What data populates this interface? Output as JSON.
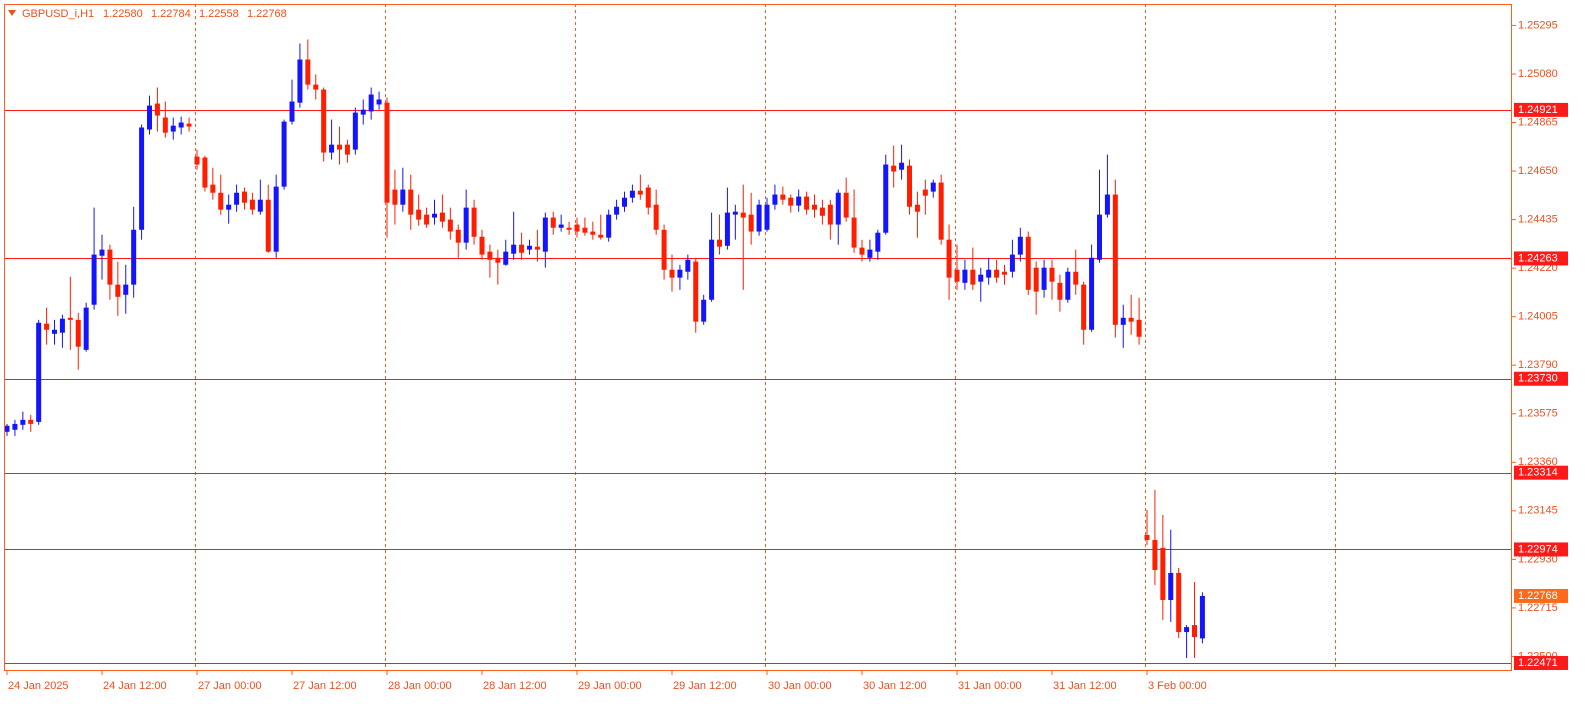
{
  "chart_data": {
    "type": "candlestick",
    "title": "GBPUSD_i,H1",
    "title_values": [
      "1.22580",
      "1.22784",
      "1.22558",
      "1.22768"
    ],
    "categories": [
      "24 Jan 2025",
      null,
      null,
      null,
      null,
      null,
      null,
      null,
      null,
      null,
      null,
      null,
      "24 Jan 12:00",
      null,
      null,
      null,
      null,
      null,
      null,
      null,
      null,
      null,
      null,
      null,
      "27 Jan 00:00",
      null,
      null,
      null,
      null,
      null,
      null,
      null,
      null,
      null,
      null,
      null,
      "27 Jan 12:00",
      null,
      null,
      null,
      null,
      null,
      null,
      null,
      null,
      null,
      null,
      null,
      "28 Jan 00:00",
      null,
      null,
      null,
      null,
      null,
      null,
      null,
      null,
      null,
      null,
      null,
      "28 Jan 12:00",
      null,
      null,
      null,
      null,
      null,
      null,
      null,
      null,
      null,
      null,
      null,
      "29 Jan 00:00",
      null,
      null,
      null,
      null,
      null,
      null,
      null,
      null,
      null,
      null,
      null,
      "29 Jan 12:00",
      null,
      null,
      null,
      null,
      null,
      null,
      null,
      null,
      null,
      null,
      null,
      "30 Jan 00:00",
      null,
      null,
      null,
      null,
      null,
      null,
      null,
      null,
      null,
      null,
      null,
      "30 Jan 12:00",
      null,
      null,
      null,
      null,
      null,
      null,
      null,
      null,
      null,
      null,
      null,
      "31 Jan 00:00",
      null,
      null,
      null,
      null,
      null,
      null,
      null,
      null,
      null,
      null,
      null,
      "31 Jan 12:00",
      null,
      null,
      null,
      null,
      null,
      null,
      null,
      null,
      null,
      null,
      null,
      "3 Feb 00:00",
      null,
      null,
      null,
      null,
      null,
      null,
      null
    ],
    "open": [
      1.23495,
      1.23504,
      1.23526,
      1.23548,
      1.23539,
      1.23974,
      1.23929,
      1.23934,
      1.24,
      1.23991,
      1.23858,
      1.24058,
      1.24275,
      1.24302,
      1.24147,
      1.24102,
      1.24147,
      1.2439,
      1.24834,
      1.24949,
      1.24887,
      1.24825,
      1.24843,
      1.2486,
      1.24714,
      1.2471,
      1.2459,
      1.24554,
      1.24479,
      1.24501,
      1.24559,
      1.24523,
      1.2447,
      1.24523,
      1.24293,
      1.24581,
      1.24869,
      1.24953,
      1.25144,
      1.25033,
      1.25011,
      1.24732,
      1.24767,
      1.24767,
      1.24745,
      1.249,
      1.24914,
      1.24945,
      1.24953,
      1.24568,
      1.24501,
      1.24568,
      1.24479,
      1.24457,
      1.24444,
      1.24466,
      1.24435,
      1.2439,
      1.24333,
      1.24488,
      1.24359,
      1.24293,
      1.24266,
      1.24235,
      1.24284,
      1.24324,
      1.24302,
      1.24315,
      1.24293,
      1.24444,
      1.24399,
      1.24399,
      1.24413,
      1.24399,
      1.24382,
      1.24368,
      1.24355,
      1.24457,
      1.24492,
      1.24532,
      1.24563,
      1.24577,
      1.24501,
      1.2439,
      1.24213,
      1.24178,
      1.24204,
      1.24249,
      1.23983,
      1.2408,
      1.24346,
      1.24319,
      1.24457,
      1.24466,
      1.24457,
      1.24382,
      1.2439,
      1.24501,
      1.24546,
      1.24532,
      1.24497,
      1.24537,
      1.24501,
      1.24488,
      1.24501,
      1.24413,
      1.24554,
      1.24444,
      1.24311,
      1.24266,
      1.24293,
      1.24377,
      1.24674,
      1.24656,
      1.24674,
      1.24501,
      1.24568,
      1.24559,
      1.24599,
      1.24346,
      1.24213,
      1.24155,
      1.24213,
      1.2416,
      1.24178,
      1.24213,
      1.24204,
      1.24204,
      1.2428,
      1.24359,
      1.24222,
      1.24124,
      1.24222,
      1.24155,
      1.2408,
      1.24204,
      1.24147,
      1.23947,
      1.24257,
      1.24457,
      1.24546,
      1.23969,
      1.24,
      1.23991,
      1.23038,
      1.23016,
      1.22981,
      1.2275,
      1.2287,
      1.22608,
      1.22639,
      1.2258
    ],
    "high": [
      1.2353,
      1.23548,
      1.23584,
      1.2357,
      1.23991,
      1.24045,
      1.23991,
      1.24014,
      1.24182,
      1.24022,
      1.24067,
      1.24488,
      1.24368,
      1.24324,
      1.24249,
      1.24235,
      1.24492,
      1.24856,
      1.24984,
      1.2502,
      1.24958,
      1.24887,
      1.24891,
      1.24887,
      1.24745,
      1.24718,
      1.24665,
      1.24634,
      1.24546,
      1.2459,
      1.24577,
      1.24554,
      1.24612,
      1.2459,
      1.24634,
      1.24878,
      1.25055,
      1.25215,
      1.25233,
      1.25078,
      1.2502,
      1.24878,
      1.24847,
      1.24789,
      1.24931,
      1.24967,
      1.2502,
      1.25002,
      1.24976,
      1.24656,
      1.24665,
      1.24634,
      1.24546,
      1.24488,
      1.24523,
      1.24546,
      1.24488,
      1.24413,
      1.24568,
      1.24523,
      1.2439,
      1.24324,
      1.24302,
      1.24346,
      1.2447,
      1.24377,
      1.24346,
      1.2439,
      1.24466,
      1.2447,
      1.24457,
      1.24426,
      1.24444,
      1.24444,
      1.24426,
      1.24457,
      1.24479,
      1.24523,
      1.24559,
      1.2459,
      1.24634,
      1.2459,
      1.24568,
      1.24413,
      1.2428,
      1.24235,
      1.2428,
      1.24266,
      1.24102,
      1.24466,
      1.24457,
      1.24577,
      1.24501,
      1.2459,
      1.24554,
      1.24523,
      1.24532,
      1.2459,
      1.24581,
      1.24546,
      1.24568,
      1.24559,
      1.24546,
      1.24523,
      1.24523,
      1.24568,
      1.24621,
      1.24568,
      1.24346,
      1.24346,
      1.2439,
      1.24723,
      1.24763,
      1.24767,
      1.24701,
      1.24559,
      1.24612,
      1.24612,
      1.24634,
      1.24413,
      1.24324,
      1.24257,
      1.24311,
      1.24222,
      1.24266,
      1.24257,
      1.24235,
      1.24346,
      1.24399,
      1.24382,
      1.24249,
      1.24257,
      1.24257,
      1.24191,
      1.24222,
      1.24302,
      1.2416,
      1.24324,
      1.24656,
      1.24723,
      1.24612,
      1.24058,
      1.24102,
      1.24089,
      1.23149,
      1.23238,
      1.23127,
      1.23061,
      1.22892,
      1.22639,
      1.2283,
      1.22784
    ],
    "low": [
      1.23477,
      1.23477,
      1.23504,
      1.23495,
      1.23526,
      1.23881,
      1.23881,
      1.23867,
      1.23858,
      1.2377,
      1.2385,
      1.24036,
      1.24169,
      1.2408,
      1.24009,
      1.24018,
      1.24089,
      1.24346,
      1.24812,
      1.24825,
      1.24798,
      1.24789,
      1.24812,
      1.24825,
      1.24656,
      1.24559,
      1.24523,
      1.24457,
      1.24417,
      1.2447,
      1.24479,
      1.24457,
      1.24457,
      1.24288,
      1.24266,
      1.24568,
      1.24856,
      1.24931,
      1.25011,
      1.24967,
      1.24692,
      1.24701,
      1.24679,
      1.24687,
      1.24723,
      1.24856,
      1.24878,
      1.24922,
      1.24355,
      1.24413,
      1.2447,
      1.2439,
      1.24408,
      1.24399,
      1.24413,
      1.24399,
      1.24346,
      1.24266,
      1.24302,
      1.24324,
      1.24257,
      1.24178,
      1.24147,
      1.24231,
      1.24257,
      1.24257,
      1.2428,
      1.24249,
      1.24222,
      1.24368,
      1.24382,
      1.24368,
      1.24355,
      1.24364,
      1.24346,
      1.24346,
      1.24337,
      1.24435,
      1.2447,
      1.2451,
      1.24523,
      1.24457,
      1.24368,
      1.24169,
      1.24116,
      1.24124,
      1.24169,
      1.23934,
      1.23969,
      1.24071,
      1.2428,
      1.24302,
      1.24346,
      1.24124,
      1.24324,
      1.24364,
      1.24382,
      1.24479,
      1.24501,
      1.24466,
      1.2447,
      1.24457,
      1.24444,
      1.24413,
      1.24346,
      1.24324,
      1.24426,
      1.24288,
      1.24249,
      1.24249,
      1.24257,
      1.24368,
      1.24577,
      1.24612,
      1.24457,
      1.24355,
      1.24457,
      1.24532,
      1.24324,
      1.2408,
      1.24124,
      1.24124,
      1.24124,
      1.24071,
      1.24147,
      1.24155,
      1.24147,
      1.24178,
      1.24249,
      1.24102,
      1.24014,
      1.24089,
      1.2408,
      1.24027,
      1.24067,
      1.24102,
      1.23881,
      1.23938,
      1.24244,
      1.24444,
      1.23912,
      1.23867,
      1.23925,
      1.23881,
      1.22994,
      1.22817,
      1.22662,
      1.22653,
      1.22582,
      1.22493,
      1.22493,
      1.22558
    ],
    "close": [
      1.23522,
      1.2353,
      1.23548,
      1.2353,
      1.23978,
      1.23947,
      1.23947,
      1.23996,
      1.23991,
      1.23872,
      1.24045,
      1.2428,
      1.24302,
      1.24147,
      1.24093,
      1.24147,
      1.2439,
      1.24843,
      1.2494,
      1.24896,
      1.2482,
      1.24851,
      1.24865,
      1.24847,
      1.24679,
      1.24577,
      1.24554,
      1.24479,
      1.24501,
      1.24554,
      1.2451,
      1.24479,
      1.24523,
      1.24293,
      1.24581,
      1.24869,
      1.24958,
      1.25144,
      1.25033,
      1.25011,
      1.24732,
      1.24767,
      1.24745,
      1.24723,
      1.24909,
      1.24922,
      1.24989,
      1.24967,
      1.2451,
      1.24501,
      1.24568,
      1.24457,
      1.24435,
      1.24413,
      1.24461,
      1.24426,
      1.24382,
      1.24333,
      1.24488,
      1.24359,
      1.2428,
      1.24257,
      1.24244,
      1.24293,
      1.24324,
      1.24288,
      1.24319,
      1.24302,
      1.24444,
      1.24399,
      1.24413,
      1.2439,
      1.24382,
      1.24377,
      1.24368,
      1.24355,
      1.24457,
      1.24492,
      1.24532,
      1.24563,
      1.24546,
      1.24488,
      1.2439,
      1.24213,
      1.24178,
      1.24213,
      1.24257,
      1.23983,
      1.2408,
      1.24346,
      1.24315,
      1.24466,
      1.2447,
      1.24444,
      1.24382,
      1.24501,
      1.24501,
      1.24546,
      1.24523,
      1.24497,
      1.24537,
      1.24479,
      1.24479,
      1.24452,
      1.24413,
      1.24554,
      1.24444,
      1.24311,
      1.2428,
      1.24302,
      1.24377,
      1.24679,
      1.24648,
      1.24687,
      1.24492,
      1.2447,
      1.24541,
      1.24599,
      1.24346,
      1.24178,
      1.2416,
      1.24213,
      1.24147,
      1.24191,
      1.24213,
      1.24178,
      1.24191,
      1.2428,
      1.24359,
      1.24124,
      1.24116,
      1.24222,
      1.2416,
      1.2408,
      1.24204,
      1.24147,
      1.23947,
      1.24266,
      1.24457,
      1.24546,
      1.23969,
      1.24,
      1.23983,
      1.23916,
      1.23016,
      1.22883,
      1.2275,
      1.2287,
      1.22608,
      1.2263,
      1.22586,
      1.22768
    ],
    "up_color": "#1414ff",
    "down_color": "#ff1e00",
    "ylim": [
      1.2244,
      1.2539
    ],
    "yticks": [
      1.25295,
      {
        "value": 1.2508,
        "label": "1.25080"
      },
      1.24865,
      {
        "value": 1.2465,
        "label": "1.24650"
      },
      1.24435,
      {
        "value": 1.2422,
        "label": "1.24220"
      },
      1.24005,
      {
        "value": 1.2379,
        "label": "1.23790"
      },
      1.23575,
      {
        "value": 1.2336,
        "label": "1.23360"
      },
      1.23145,
      {
        "value": 1.2293,
        "label": "1.22930"
      },
      1.22715,
      {
        "value": 1.225,
        "label": "1.22500"
      }
    ],
    "levels": [
      1.24921,
      1.24263,
      {
        "value": 1.2373,
        "label": "1.23730"
      },
      1.23314,
      1.22974,
      1.22471
    ],
    "level_color": "#ff1a1a",
    "bid_color": "#ff6a1a",
    "grid": true,
    "grid_color": "#ff5a1f"
  }
}
